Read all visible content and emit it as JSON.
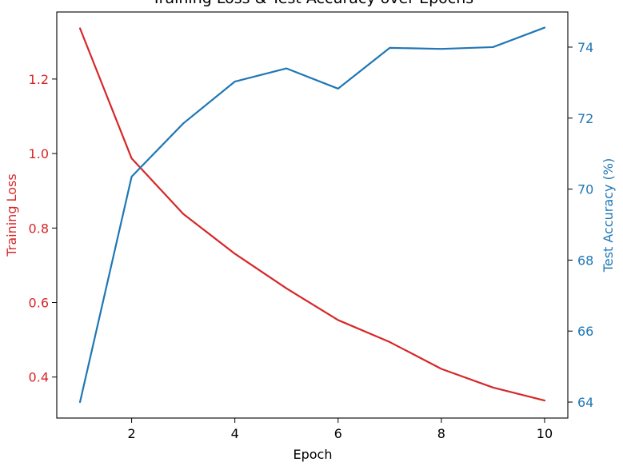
{
  "chart_data": {
    "type": "line",
    "title": "Training Loss & Test Accuracy over Epochs",
    "xlabel": "Epoch",
    "x": [
      1,
      2,
      3,
      4,
      5,
      6,
      7,
      8,
      9,
      10
    ],
    "xlim": [
      0.55,
      10.45
    ],
    "xticks": [
      2,
      4,
      6,
      8,
      10
    ],
    "left_axis": {
      "label": "Training Loss",
      "color": "#d62728",
      "ylim": [
        0.29,
        1.38
      ],
      "ticks": [
        0.4,
        0.6,
        0.8,
        1.0,
        1.2
      ],
      "tick_labels": [
        "0.4",
        "0.6",
        "0.8",
        "1.0",
        "1.2"
      ]
    },
    "right_axis": {
      "label": "Test Accuracy (%)",
      "color": "#1f77b4",
      "ylim": [
        63.55,
        74.99
      ],
      "ticks": [
        64,
        66,
        68,
        70,
        72,
        74
      ],
      "tick_labels": [
        "64",
        "66",
        "68",
        "70",
        "72",
        "74"
      ]
    },
    "series": [
      {
        "axis": "left",
        "color": "#d62728",
        "values": [
          1.336,
          0.987,
          0.838,
          0.731,
          0.638,
          0.553,
          0.494,
          0.422,
          0.372,
          0.337
        ]
      },
      {
        "axis": "right",
        "color": "#1f77b4",
        "values": [
          64.0,
          70.35,
          71.85,
          73.03,
          73.4,
          72.83,
          73.98,
          73.95,
          74.0,
          74.55
        ]
      }
    ],
    "grid": false,
    "legend": "none"
  }
}
